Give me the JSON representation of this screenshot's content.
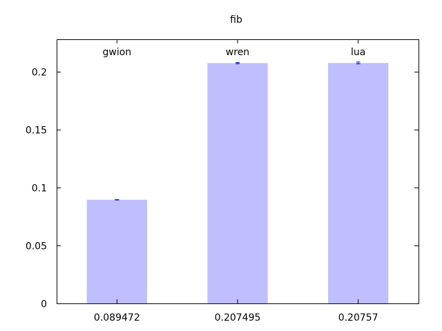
{
  "chart_data": {
    "type": "bar",
    "title": "fib",
    "categories": [
      "gwion",
      "wren",
      "lua"
    ],
    "x_tick_labels": [
      "0.089472",
      "0.207495",
      "0.20757"
    ],
    "values": [
      0.089472,
      0.207495,
      0.20757
    ],
    "error_bars": [
      {
        "low": 0.0893,
        "high": 0.0896
      },
      {
        "low": 0.2069,
        "high": 0.208
      },
      {
        "low": 0.2068,
        "high": 0.2084
      }
    ],
    "ylim": [
      0,
      0.228
    ],
    "yticks": [
      0,
      0.05,
      0.1,
      0.15,
      0.2
    ],
    "ytick_labels": [
      "0",
      "0.05",
      "0.1",
      "0.15",
      "0.2"
    ],
    "xlabel": "",
    "ylabel": "",
    "grid": false,
    "legend": "none",
    "colors": {
      "bar": "#bfbfff",
      "error_bar": "#0000cc",
      "axis": "#000000"
    }
  }
}
